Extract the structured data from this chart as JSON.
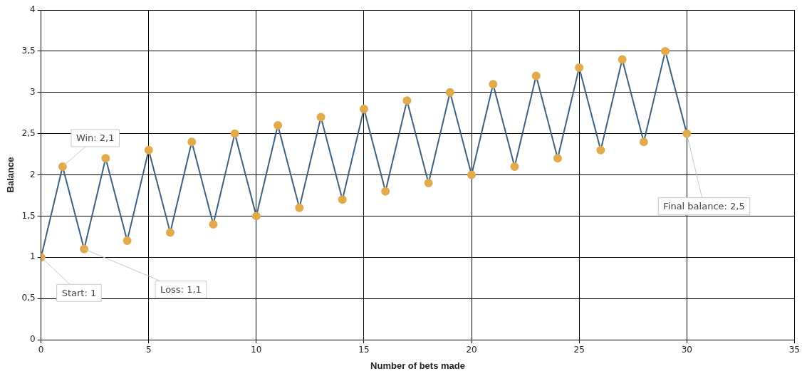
{
  "chart_data": {
    "type": "line",
    "xlabel": "Number of bets made",
    "ylabel": "Balance",
    "x": [
      0,
      1,
      2,
      3,
      4,
      5,
      6,
      7,
      8,
      9,
      10,
      11,
      12,
      13,
      14,
      15,
      16,
      17,
      18,
      19,
      20,
      21,
      22,
      23,
      24,
      25,
      26,
      27,
      28,
      29,
      30
    ],
    "series": [
      {
        "color": "#3c6283",
        "colors": [
          "#e2aa4a",
          "#e2aa4a",
          "#e2aa4a",
          "#e2aa4a",
          "#e2aa4a",
          "#e2aa4a",
          "#e2aa4a",
          "#e2aa4a",
          "#e2aa4a",
          "#e2aa4a",
          "#e2aa4a",
          "#e2aa4a",
          "#e2aa4a",
          "#e2aa4a",
          "#e2aa4a",
          "#e2aa4a",
          "#e2aa4a",
          "#e2aa4a",
          "#e2aa4a",
          "#e2aa4a",
          "#e2aa4a",
          "#e2aa4a",
          "#e2aa4a",
          "#e2aa4a",
          "#e2aa4a",
          "#e2aa4a",
          "#e2aa4a",
          "#e2aa4a",
          "#e2aa4a",
          "#e2aa4a",
          "#e2aa4a"
        ],
        "values": [
          1,
          2.1,
          1.1,
          2.2,
          1.2,
          2.3,
          1.3,
          2.4,
          1.4,
          2.5,
          1.5,
          2.6,
          1.6,
          2.7,
          1.7,
          2.8,
          1.8,
          2.9,
          1.9,
          3.0,
          2.0,
          3.1,
          2.1,
          3.2,
          2.2,
          3.3,
          2.3,
          3.4,
          2.4,
          3.5,
          2.5
        ]
      }
    ],
    "xlim": [
      0,
      35
    ],
    "xticks": [
      0,
      5,
      10,
      15,
      20,
      25,
      30,
      35
    ],
    "ylim": [
      0,
      4
    ],
    "yticks": [
      0,
      {
        "value": 0.5,
        "label": "0,5"
      },
      1,
      {
        "value": 1.5,
        "label": "1,5"
      },
      2,
      {
        "value": 2.5,
        "label": "2,5"
      },
      3,
      {
        "value": 3.5,
        "label": "3,5"
      },
      4
    ],
    "grid": true,
    "legend": false,
    "marker": "circle",
    "line_style": "solid",
    "annotations": [
      {
        "text": "Start: 1",
        "x": 0,
        "y": 1
      },
      {
        "text": "Win: 2,1",
        "x": 1,
        "y": 2.1
      },
      {
        "text": "Loss: 1,1",
        "x": 2,
        "y": 1.1
      },
      {
        "text": "Final balance: 2,5",
        "x": 30,
        "y": 2.5
      }
    ]
  }
}
